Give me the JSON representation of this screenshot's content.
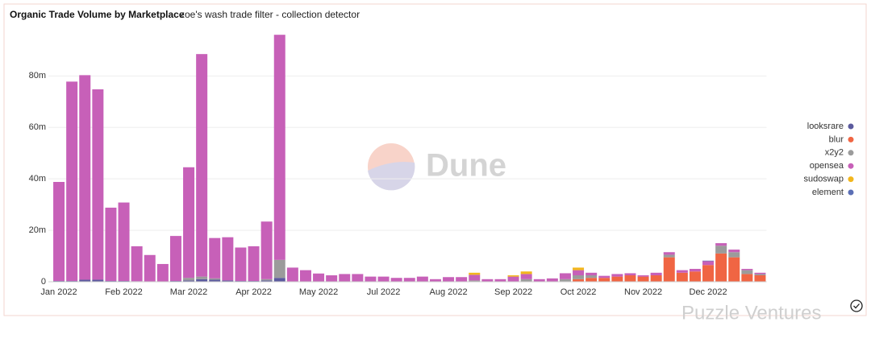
{
  "chart_data": {
    "type": "stacked_bar",
    "title": "Organic Trade Volume by Marketplace",
    "subtitle": "zoe's wash trade filter - collection detector",
    "watermark": "Dune",
    "categories": [
      "Jan 2022",
      null,
      null,
      null,
      null,
      "Feb 2022",
      null,
      null,
      null,
      null,
      "Mar 2022",
      null,
      null,
      null,
      null,
      "Apr 2022",
      null,
      null,
      null,
      null,
      "May 2022",
      null,
      null,
      null,
      null,
      "Jul 2022",
      null,
      null,
      null,
      null,
      "Aug 2022",
      null,
      null,
      null,
      null,
      "Sep 2022",
      null,
      null,
      null,
      null,
      "Oct 2022",
      null,
      null,
      null,
      null,
      "Nov 2022",
      null,
      null,
      null,
      null,
      "Dec 2022",
      null,
      null,
      null,
      null
    ],
    "series": [
      {
        "name": "looksrare",
        "color": "#5b5a9e",
        "values": [
          0.3,
          0.3,
          0.8,
          0.8,
          0.3,
          0.3,
          0.2,
          0.1,
          0.1,
          0.3,
          0.5,
          1,
          0.8,
          0.5,
          0.3,
          0.3,
          0.5,
          1.5,
          0,
          0,
          0,
          0,
          0,
          0,
          0,
          0,
          0,
          0,
          0,
          0,
          0,
          0,
          0,
          0,
          0,
          0,
          0,
          0,
          0,
          0,
          0,
          0,
          0,
          0,
          0,
          0,
          0,
          0,
          0,
          0,
          0,
          0,
          0,
          0,
          0
        ]
      },
      {
        "name": "blur",
        "color": "#f06543",
        "values": [
          0,
          0,
          0,
          0,
          0,
          0,
          0,
          0,
          0,
          0,
          0,
          0,
          0,
          0,
          0,
          0,
          0,
          0,
          0,
          0,
          0,
          0,
          0,
          0,
          0,
          0,
          0,
          0,
          0,
          0,
          0,
          0,
          0,
          0,
          0,
          0,
          0,
          0,
          0,
          0,
          1,
          1.5,
          1.5,
          2,
          2.5,
          2,
          2.5,
          9.5,
          3.5,
          4,
          6.5,
          11,
          9.5,
          3,
          2.5
        ]
      },
      {
        "name": "x2y2",
        "color": "#9b9b9b",
        "values": [
          0,
          0,
          0,
          0,
          0,
          0,
          0,
          0,
          0,
          0,
          1,
          1,
          0.5,
          0,
          0,
          0,
          0.5,
          7,
          0,
          0,
          0,
          0,
          0,
          0,
          0,
          0,
          0,
          0,
          0,
          0,
          0,
          0,
          0.5,
          0,
          0,
          0,
          1,
          0,
          0,
          1,
          1.5,
          1,
          0,
          0,
          0,
          0,
          0,
          1,
          0,
          0,
          0,
          3,
          2,
          1.5,
          0.5
        ]
      },
      {
        "name": "opensea",
        "color": "#c760b8",
        "values": [
          38.5,
          77.5,
          79.5,
          74,
          28.5,
          30.5,
          13.6,
          10.3,
          6.8,
          17.5,
          43,
          86.5,
          15.7,
          16.8,
          13,
          13.5,
          22.4,
          87.5,
          5.5,
          4.5,
          3.2,
          2.5,
          3,
          3,
          2,
          2,
          1.5,
          1.5,
          2,
          1,
          1.8,
          1.8,
          2.2,
          1,
          1,
          2,
          2,
          1,
          1.3,
          2.3,
          2,
          1,
          0.8,
          1,
          0.8,
          0.5,
          1,
          1,
          1,
          1,
          1.5,
          1,
          1,
          0.5,
          0.5
        ]
      },
      {
        "name": "sudoswap",
        "color": "#f2b61d",
        "values": [
          0,
          0,
          0,
          0,
          0,
          0,
          0,
          0,
          0,
          0,
          0,
          0,
          0,
          0,
          0,
          0,
          0,
          0,
          0,
          0,
          0,
          0,
          0,
          0,
          0,
          0,
          0,
          0,
          0,
          0,
          0,
          0,
          0.8,
          0,
          0,
          0.5,
          1,
          0,
          0,
          0,
          1,
          0,
          0,
          0,
          0,
          0,
          0,
          0,
          0,
          0,
          0,
          0,
          0,
          0,
          0
        ]
      },
      {
        "name": "element",
        "color": "#5b6fb5",
        "values": [
          0,
          0,
          0,
          0,
          0,
          0,
          0,
          0,
          0,
          0,
          0,
          0,
          0,
          0,
          0,
          0,
          0,
          0,
          0,
          0,
          0,
          0,
          0,
          0,
          0,
          0,
          0,
          0,
          0,
          0,
          0,
          0,
          0,
          0,
          0,
          0,
          0,
          0,
          0,
          0,
          0,
          0,
          0,
          0,
          0,
          0,
          0,
          0,
          0,
          0,
          0.2,
          0,
          0,
          0,
          0
        ]
      }
    ],
    "ylim": [
      0,
      97
    ],
    "yticks": [
      0,
      {
        "value": 20,
        "label": "20m"
      },
      {
        "value": 40,
        "label": "40m"
      },
      {
        "value": 60,
        "label": "60m"
      },
      {
        "value": 80,
        "label": "80m"
      }
    ],
    "grid": true,
    "legend": "right"
  },
  "overlay_text": "Puzzle Ventures"
}
